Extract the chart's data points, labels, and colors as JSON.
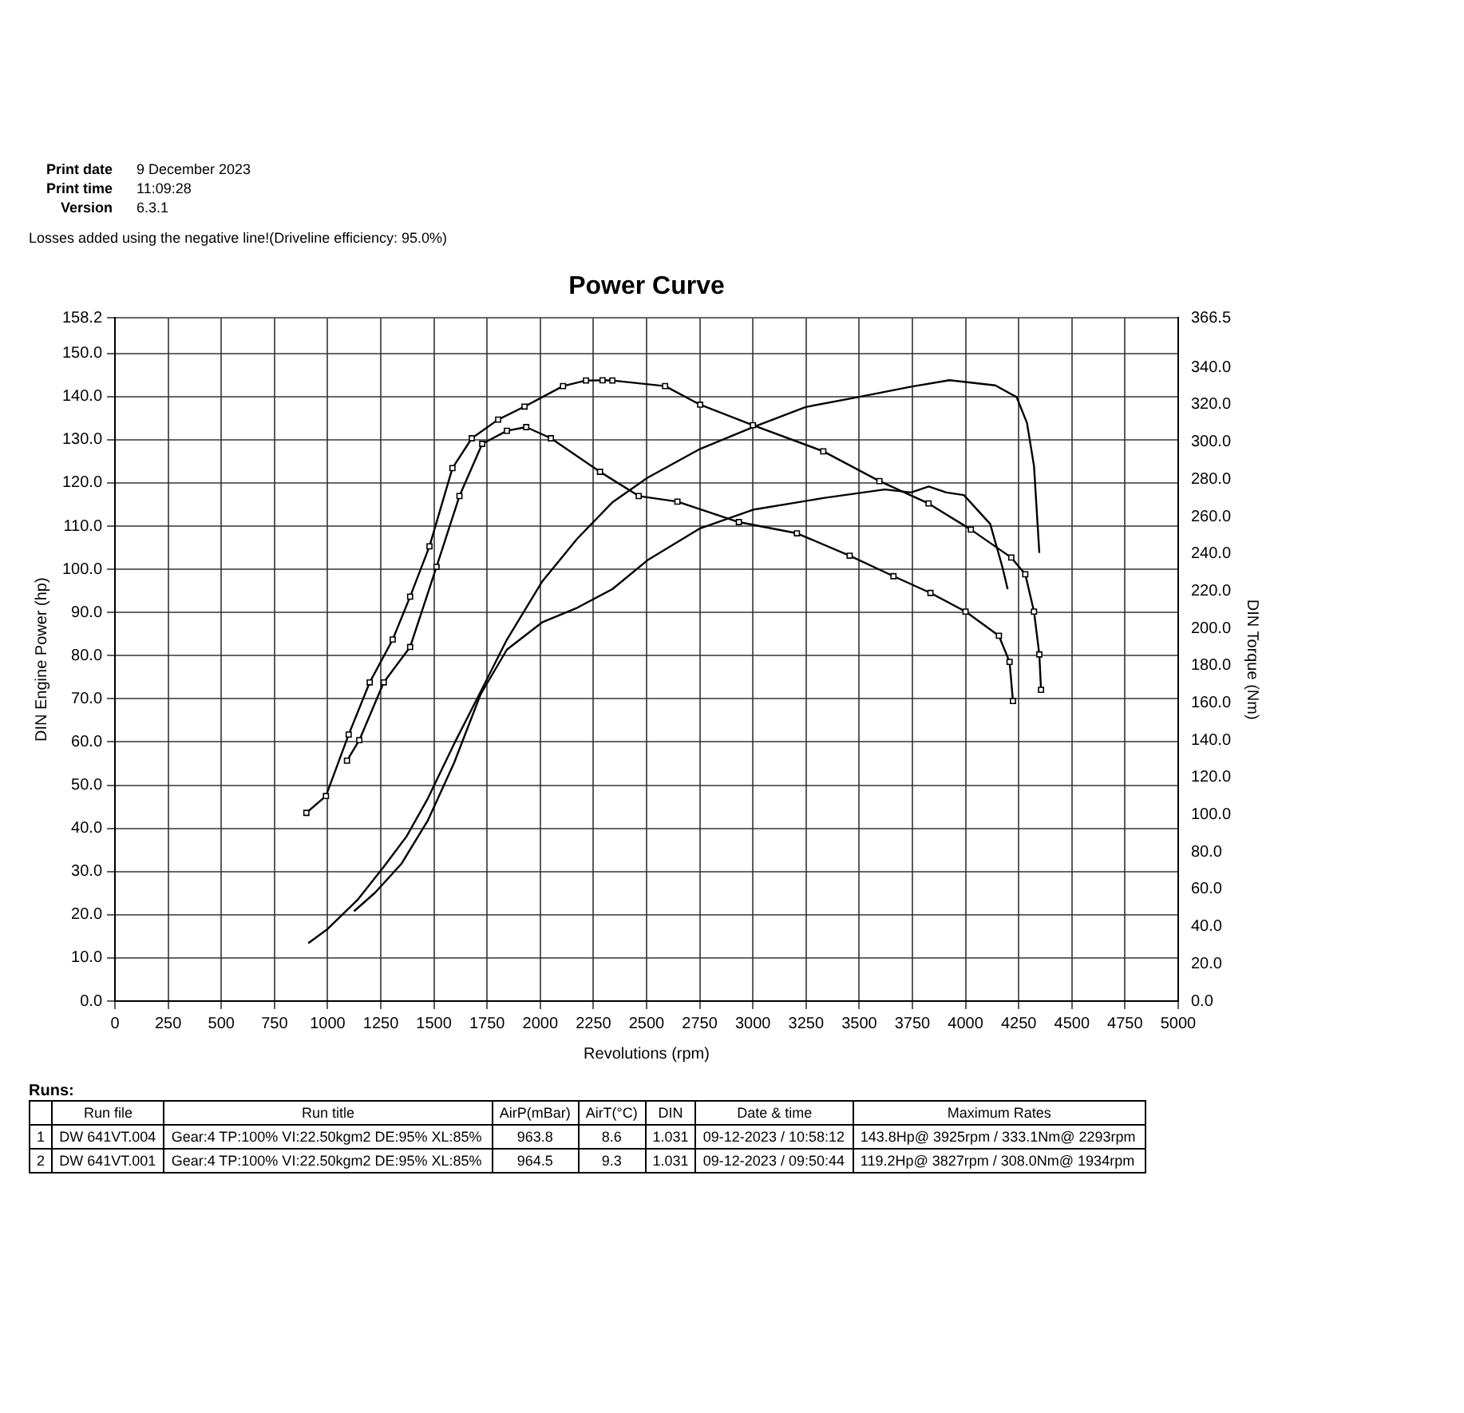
{
  "chart_data": {
    "type": "line",
    "title": "Power Curve",
    "xlabel": "Revolutions (rpm)",
    "ylabel": "DIN Engine Power (hp)",
    "y2label": "DIN Torque (Nm)",
    "xlim": [
      0,
      5000
    ],
    "xticks": [
      0,
      250,
      500,
      750,
      1000,
      1250,
      1500,
      1750,
      2000,
      2250,
      2500,
      2750,
      3000,
      3250,
      3500,
      3750,
      4000,
      4250,
      4500,
      4750,
      5000
    ],
    "ylim": [
      0,
      158.2
    ],
    "yticks": [
      {
        "value": 0,
        "label": "0.0"
      },
      {
        "value": 10,
        "label": "10.0"
      },
      {
        "value": 20,
        "label": "20.0"
      },
      {
        "value": 30,
        "label": "30.0"
      },
      {
        "value": 40,
        "label": "40.0"
      },
      {
        "value": 50,
        "label": "50.0"
      },
      {
        "value": 60,
        "label": "60.0"
      },
      {
        "value": 70,
        "label": "70.0"
      },
      {
        "value": 80,
        "label": "80.0"
      },
      {
        "value": 90,
        "label": "90.0"
      },
      {
        "value": 100,
        "label": "100.0"
      },
      {
        "value": 110,
        "label": "110.0"
      },
      {
        "value": 120,
        "label": "120.0"
      },
      {
        "value": 130,
        "label": "130.0"
      },
      {
        "value": 140,
        "label": "140.0"
      },
      {
        "value": 150,
        "label": "150.0"
      },
      {
        "value": 158.2,
        "label": "158.2"
      }
    ],
    "y2lim": [
      0,
      366.5
    ],
    "y2ticks": [
      {
        "value": 0,
        "label": "0.0"
      },
      {
        "value": 20,
        "label": "20.0"
      },
      {
        "value": 40,
        "label": "40.0"
      },
      {
        "value": 60,
        "label": "60.0"
      },
      {
        "value": 80,
        "label": "80.0"
      },
      {
        "value": 100,
        "label": "100.0"
      },
      {
        "value": 120,
        "label": "120.0"
      },
      {
        "value": 140,
        "label": "140.0"
      },
      {
        "value": 160,
        "label": "160.0"
      },
      {
        "value": 180,
        "label": "180.0"
      },
      {
        "value": 200,
        "label": "200.0"
      },
      {
        "value": 220,
        "label": "220.0"
      },
      {
        "value": 240,
        "label": "240.0"
      },
      {
        "value": 260,
        "label": "260.0"
      },
      {
        "value": 280,
        "label": "280.0"
      },
      {
        "value": 300,
        "label": "300.0"
      },
      {
        "value": 320,
        "label": "320.0"
      },
      {
        "value": 340,
        "label": "340.0"
      },
      {
        "value": 366.5,
        "label": "366.5"
      }
    ],
    "grid": true,
    "legend": false,
    "line_style": "solid",
    "series": [
      {
        "type": "line",
        "axis": "y2",
        "marker": "square",
        "color": "#000000",
        "x": [
          900,
          992,
          1099,
          1198,
          1306,
          1388,
          1479,
          1587,
          1678,
          1802,
          1926,
          2107,
          2215,
          2293,
          2339,
          2587,
          2752,
          3000,
          3331,
          3595,
          3826,
          4025,
          4215,
          4281,
          4322,
          4347,
          4355
        ],
        "values": [
          101,
          110,
          143,
          171,
          194,
          217,
          244,
          286,
          302,
          312,
          319,
          330,
          333,
          333.1,
          333,
          330,
          320,
          309,
          295,
          279,
          267,
          253,
          238,
          229,
          209,
          186,
          167
        ]
      },
      {
        "type": "line",
        "axis": "y2",
        "marker": "square",
        "color": "#000000",
        "x": [
          1091,
          1149,
          1264,
          1388,
          1512,
          1620,
          1727,
          1843,
          1934,
          2050,
          2281,
          2463,
          2645,
          2934,
          3207,
          3455,
          3661,
          3835,
          4000,
          4157,
          4207,
          4223
        ],
        "values": [
          129,
          140,
          171,
          190,
          233,
          271,
          299,
          306,
          308.0,
          302,
          284,
          271,
          268,
          257,
          251,
          239,
          228,
          219,
          209,
          196,
          182,
          161
        ]
      },
      {
        "type": "line",
        "marker": "none",
        "color": "#000000",
        "x": [
          909,
          1000,
          1140,
          1264,
          1372,
          1471,
          1595,
          1719,
          1843,
          2008,
          2174,
          2339,
          2504,
          2752,
          3000,
          3248,
          3496,
          3744,
          3925,
          4140,
          4240,
          4289,
          4322,
          4347
        ],
        "values": [
          13.4,
          16.7,
          23.4,
          31.1,
          38.2,
          46.9,
          59.6,
          71.6,
          83.7,
          97.1,
          107.1,
          115.5,
          121.2,
          127.9,
          132.9,
          137.6,
          139.9,
          142.3,
          143.8,
          142.6,
          139.9,
          133.9,
          123.9,
          103.8
        ]
      },
      {
        "type": "line",
        "marker": "none",
        "color": "#000000",
        "x": [
          1124,
          1223,
          1347,
          1471,
          1595,
          1719,
          1843,
          2008,
          2174,
          2339,
          2504,
          2752,
          3000,
          3331,
          3620,
          3744,
          3827,
          3909,
          3992,
          4116,
          4174,
          4198
        ],
        "values": [
          20.8,
          25.1,
          31.8,
          41.8,
          55.2,
          71.0,
          81.4,
          87.7,
          91.1,
          95.4,
          102.1,
          109.5,
          113.8,
          116.5,
          118.5,
          117.8,
          119.2,
          117.8,
          117.2,
          110.5,
          100.4,
          95.4
        ]
      }
    ],
    "annotations": [
      "Losses added using the negative line!(Driveline efficiency: 95.0%)",
      "Print date",
      "9 December 2023",
      "Print time",
      "11:09:28",
      "Version",
      "6.3.1",
      "Runs:",
      "Run file",
      "Run title",
      "AirP(mBar)",
      "AirT(°C)",
      "DIN",
      "Date & time",
      "Maximum Rates",
      "1",
      "DW 641VT.004",
      "Gear:4 TP:100% VI:22.50kgm2 DE:95% XL:85%",
      "963.8",
      "8.6",
      "1.031",
      "09-12-2023 / 10:58:12",
      "143.8Hp@ 3925rpm / 333.1Nm@ 2293rpm",
      "2",
      "DW 641VT.001",
      "Gear:4 TP:100% VI:22.50kgm2 DE:95% XL:85%",
      "964.5",
      "9.3",
      "1.031",
      "09-12-2023 / 09:50:44",
      "119.2Hp@ 3827rpm / 308.0Nm@ 1934rpm"
    ]
  }
}
